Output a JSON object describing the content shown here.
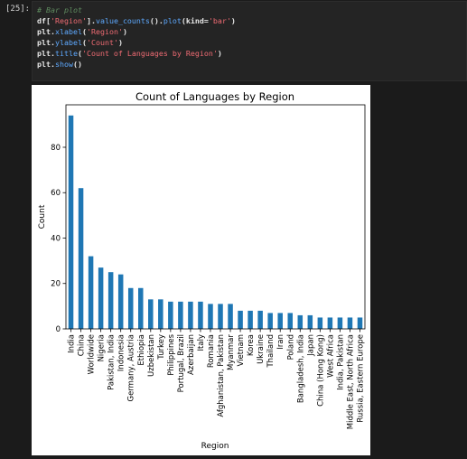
{
  "cell": {
    "prompt": "[25]:",
    "code_lines": [
      [
        {
          "t": "# Bar plot",
          "k": "c"
        }
      ],
      [
        {
          "t": "df[",
          "k": "b"
        },
        {
          "t": "'Region'",
          "k": "s"
        },
        {
          "t": "].",
          "k": "b"
        },
        {
          "t": "value_counts",
          "k": "f"
        },
        {
          "t": "().",
          "k": "b"
        },
        {
          "t": "plot",
          "k": "f"
        },
        {
          "t": "(kind=",
          "k": "b"
        },
        {
          "t": "'bar'",
          "k": "s"
        },
        {
          "t": ")",
          "k": "b"
        }
      ],
      [
        {
          "t": "plt.",
          "k": "b"
        },
        {
          "t": "xlabel",
          "k": "f"
        },
        {
          "t": "(",
          "k": "b"
        },
        {
          "t": "'Region'",
          "k": "s"
        },
        {
          "t": ")",
          "k": "b"
        }
      ],
      [
        {
          "t": "plt.",
          "k": "b"
        },
        {
          "t": "ylabel",
          "k": "f"
        },
        {
          "t": "(",
          "k": "b"
        },
        {
          "t": "'Count'",
          "k": "s"
        },
        {
          "t": ")",
          "k": "b"
        }
      ],
      [
        {
          "t": "plt.",
          "k": "b"
        },
        {
          "t": "title",
          "k": "f"
        },
        {
          "t": "(",
          "k": "b"
        },
        {
          "t": "'Count of Languages by Region'",
          "k": "s"
        },
        {
          "t": ")",
          "k": "b"
        }
      ],
      [
        {
          "t": "plt.",
          "k": "b"
        },
        {
          "t": "show",
          "k": "f"
        },
        {
          "t": "()",
          "k": "b"
        }
      ]
    ]
  },
  "chart_data": {
    "type": "bar",
    "title": "Count of Languages by Region",
    "xlabel": "Region",
    "ylabel": "Count",
    "ylim": [
      0,
      98.7
    ],
    "yticks": [
      0,
      20,
      40,
      60,
      80
    ],
    "bar_color": "#1f77b4",
    "grid": false,
    "categories": [
      "India",
      "China",
      "Worldwide",
      "Nigeria",
      "Pakistan, India",
      "Indonesia",
      "Germany, Austria",
      "Ethiopia",
      "Uzbekistan",
      "Turkey",
      "Philippines",
      "Portugal, Brazil",
      "Azerbaijan",
      "Italy",
      "Romania",
      "Afghanistan, Pakistan",
      "Myanmar",
      "Vietnam",
      "Korea",
      "Ukraine",
      "Thailand",
      "Iran",
      "Poland",
      "Bangladesh, India",
      "Japan",
      "China (Hong Kong)",
      "West Africa",
      "India, Pakistan",
      "Middle East, North Africa",
      "Russia, Eastern Europe"
    ],
    "values": [
      94,
      62,
      32,
      27,
      25,
      24,
      18,
      18,
      13,
      13,
      12,
      12,
      12,
      12,
      11,
      11,
      11,
      8,
      8,
      8,
      7,
      7,
      7,
      6,
      6,
      5,
      5,
      5,
      5,
      5
    ]
  }
}
